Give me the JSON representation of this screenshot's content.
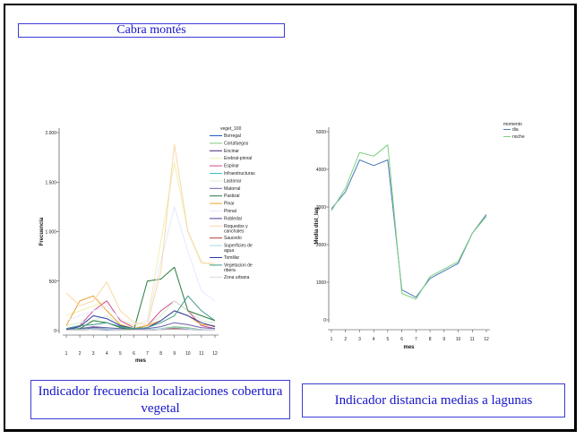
{
  "title": "Cabra montés",
  "captions": {
    "left": "Indicador frecuencia localizaciones cobertura vegetal",
    "right": "Indicador distancia medias a lagunas"
  },
  "chart_data": [
    {
      "type": "line",
      "xlabel": "mes",
      "ylabel": "Frecuencia",
      "x": [
        1,
        2,
        3,
        4,
        5,
        6,
        7,
        8,
        9,
        10,
        11,
        12
      ],
      "ylim": [
        0,
        2000
      ],
      "yticks": [
        0,
        500,
        1000,
        1500,
        2000
      ],
      "ytick_labels": [
        "0",
        "500",
        "1.000",
        "1.500",
        "2.000"
      ],
      "legend_title": "veget_100",
      "series": [
        {
          "name": "Borregal",
          "color": "#1f5fbf",
          "values": [
            5,
            5,
            10,
            5,
            5,
            5,
            5,
            10,
            20,
            10,
            5,
            5
          ]
        },
        {
          "name": "Cortafuegos",
          "color": "#7ec87e",
          "values": [
            10,
            15,
            20,
            30,
            15,
            5,
            10,
            20,
            40,
            30,
            10,
            5
          ]
        },
        {
          "name": "Encinar",
          "color": "#4a2a7a",
          "values": [
            5,
            10,
            30,
            20,
            10,
            5,
            5,
            10,
            30,
            20,
            10,
            5
          ]
        },
        {
          "name": "Erebral-pinnal",
          "color": "#f2eeb0",
          "values": [
            150,
            200,
            250,
            300,
            100,
            50,
            100,
            900,
            1700,
            1000,
            700,
            650
          ]
        },
        {
          "name": "Espinar",
          "color": "#d04a8e",
          "values": [
            20,
            50,
            200,
            300,
            100,
            30,
            50,
            200,
            300,
            200,
            50,
            20
          ]
        },
        {
          "name": "Infraestructuras",
          "color": "#3ac0c0",
          "values": [
            5,
            5,
            10,
            10,
            5,
            5,
            5,
            10,
            20,
            10,
            5,
            5
          ]
        },
        {
          "name": "Lastonar",
          "color": "#d8ecd0",
          "values": [
            50,
            80,
            100,
            150,
            60,
            30,
            50,
            150,
            300,
            200,
            100,
            80
          ]
        },
        {
          "name": "Matorral",
          "color": "#6a60a8",
          "values": [
            10,
            20,
            40,
            30,
            20,
            10,
            20,
            40,
            80,
            60,
            30,
            20
          ]
        },
        {
          "name": "Pastizal",
          "color": "#2a7a3a",
          "values": [
            10,
            20,
            100,
            80,
            30,
            10,
            500,
            520,
            640,
            200,
            150,
            100
          ]
        },
        {
          "name": "Pinar",
          "color": "#f0a030",
          "values": [
            50,
            300,
            350,
            200,
            60,
            20,
            50,
            100,
            200,
            150,
            60,
            50
          ]
        },
        {
          "name": "Pinnal",
          "color": "#e8e8ff",
          "values": [
            100,
            150,
            200,
            250,
            120,
            60,
            100,
            700,
            1250,
            800,
            400,
            300
          ]
        },
        {
          "name": "Robledal",
          "color": "#4a3a9a",
          "values": [
            5,
            10,
            20,
            15,
            10,
            5,
            5,
            10,
            20,
            15,
            10,
            5
          ]
        },
        {
          "name": "Roquedos y canchales",
          "color": "#f8d8a8",
          "values": [
            380,
            250,
            300,
            490,
            200,
            80,
            60,
            600,
            1880,
            1000,
            680,
            680
          ]
        },
        {
          "name": "Saucedo",
          "color": "#b03a3a",
          "values": [
            5,
            5,
            10,
            10,
            5,
            5,
            5,
            10,
            20,
            10,
            5,
            5
          ]
        },
        {
          "name": "Superficies de agua",
          "color": "#a8d8e8",
          "values": [
            10,
            10,
            20,
            20,
            10,
            5,
            10,
            20,
            30,
            20,
            10,
            10
          ]
        },
        {
          "name": "Tomillar",
          "color": "#2a3aa8",
          "values": [
            10,
            40,
            150,
            120,
            50,
            20,
            30,
            100,
            200,
            150,
            80,
            40
          ]
        },
        {
          "name": "Vegetacion de ribera",
          "color": "#3a9a8a",
          "values": [
            20,
            50,
            60,
            80,
            40,
            20,
            30,
            80,
            150,
            350,
            200,
            100
          ]
        },
        {
          "name": "Zona urbana",
          "color": "#d8d8d8",
          "values": [
            5,
            5,
            10,
            10,
            5,
            5,
            5,
            10,
            10,
            10,
            5,
            5
          ]
        }
      ]
    },
    {
      "type": "line",
      "xlabel": "mes",
      "ylabel": "Media dist_lag",
      "x": [
        1,
        2,
        3,
        4,
        5,
        6,
        7,
        8,
        9,
        10,
        11,
        12
      ],
      "ylim": [
        0,
        5000
      ],
      "yticks": [
        0,
        1000,
        2000,
        3000,
        4000,
        5000
      ],
      "ytick_labels": [
        "0",
        "1000",
        "2000",
        "3000",
        "4000",
        "5000"
      ],
      "legend_title": "momento",
      "series": [
        {
          "name": "dia",
          "color": "#4a7ab8",
          "values": [
            2950,
            3400,
            4250,
            4100,
            4250,
            800,
            600,
            1100,
            1300,
            1500,
            2300,
            2800
          ]
        },
        {
          "name": "noche",
          "color": "#7ed07e",
          "values": [
            2900,
            3500,
            4450,
            4350,
            4650,
            700,
            550,
            1150,
            1350,
            1550,
            2300,
            2750
          ]
        }
      ]
    }
  ]
}
